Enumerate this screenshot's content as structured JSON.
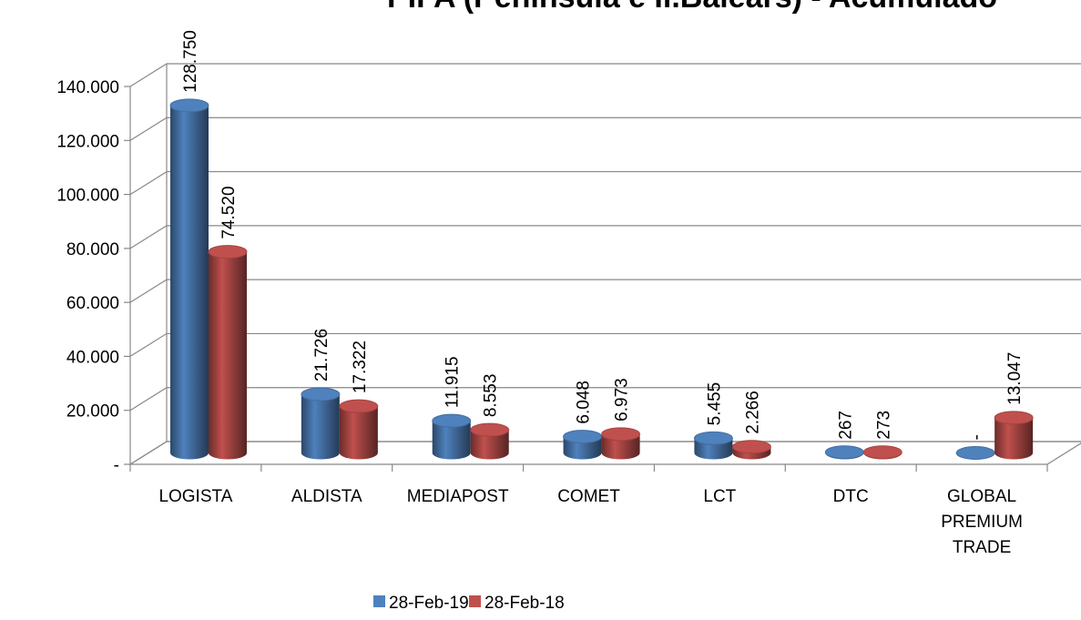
{
  "chart_data": {
    "type": "bar3d",
    "title": "PIFA  (Península e Il.Balears) - Acumulado",
    "categories": [
      "LOGISTA",
      "ALDISTA",
      "MEDIAPOST",
      "COMET",
      "LCT",
      "DTC",
      "GLOBAL PREMIUM TRADE"
    ],
    "series": [
      {
        "name": "28-Feb-19",
        "color": "#4f81bd",
        "values": [
          128750,
          21726,
          11915,
          6048,
          5455,
          267,
          0
        ],
        "value_labels": [
          "128.750",
          "21.726",
          "11.915",
          "6.048",
          "5.455",
          "267",
          "-"
        ]
      },
      {
        "name": "28-Feb-18",
        "color": "#c0504d",
        "values": [
          74520,
          17322,
          8553,
          6973,
          2266,
          273,
          13047
        ],
        "value_labels": [
          "74.520",
          "17.322",
          "8.553",
          "6.973",
          "2.266",
          "273",
          "13.047"
        ]
      }
    ],
    "ylim": [
      0,
      140000
    ],
    "yticks": [
      {
        "value": 0,
        "label": "-"
      },
      {
        "value": 20000,
        "label": "20.000"
      },
      {
        "value": 40000,
        "label": "40.000"
      },
      {
        "value": 60000,
        "label": "60.000"
      },
      {
        "value": 80000,
        "label": "80.000"
      },
      {
        "value": 100000,
        "label": "100.000"
      },
      {
        "value": 120000,
        "label": "120.000"
      },
      {
        "value": 140000,
        "label": "140.000"
      }
    ],
    "grid": true,
    "legend": "bottom"
  }
}
